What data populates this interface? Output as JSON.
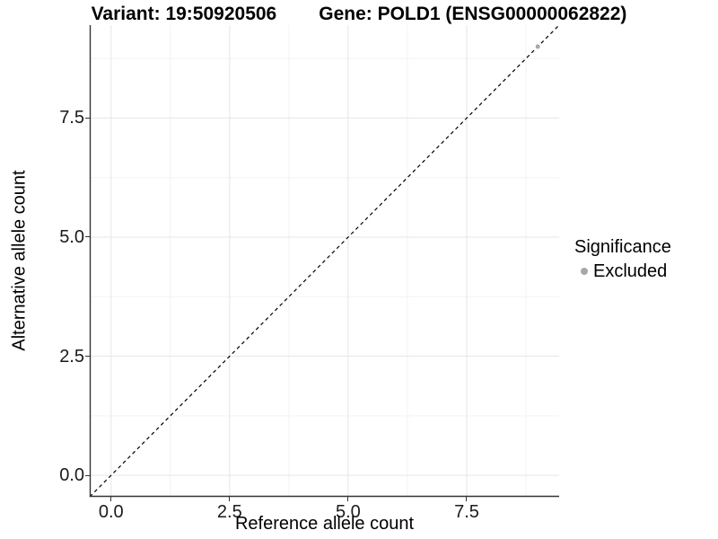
{
  "figure": {
    "title_left": "Variant: 19:50920506",
    "title_right": "Gene: POLD1 (ENSG00000062822)"
  },
  "axes": {
    "x": {
      "label": "Reference allele count"
    },
    "y": {
      "label": "Alternative allele count"
    }
  },
  "legend": {
    "title": "Significance",
    "items": [
      {
        "label": "Excluded",
        "color": "#a8a8a8",
        "shape": "circle"
      }
    ]
  },
  "colors": {
    "background": "#ffffff",
    "grid_major": "#e6e6e6",
    "grid_minor": "#f3f3f3",
    "axis_line": "#333333",
    "reference_line": "#000000",
    "text": "#000000"
  },
  "chart_data": {
    "type": "scatter",
    "title": "Variant: 19:50920506   Gene: POLD1 (ENSG00000062822)",
    "xlabel": "Reference allele count",
    "ylabel": "Alternative allele count",
    "xlim": [
      -0.45,
      9.45
    ],
    "ylim": [
      -0.45,
      9.45
    ],
    "x_ticks": [
      0.0,
      2.5,
      5.0,
      7.5
    ],
    "x_tick_labels": [
      "0.0",
      "2.5",
      "5.0",
      "7.5"
    ],
    "x_minor_ticks": [
      1.25,
      3.75,
      6.25,
      8.75
    ],
    "y_ticks": [
      0.0,
      2.5,
      5.0,
      7.5
    ],
    "y_tick_labels": [
      "0.0",
      "2.5",
      "5.0",
      "7.5"
    ],
    "y_minor_ticks": [
      1.25,
      3.75,
      6.25,
      8.75
    ],
    "grid": true,
    "legend_position": "right",
    "reference_line": {
      "slope": 1,
      "intercept": 0,
      "style": "dashed"
    },
    "series": [
      {
        "name": "Excluded",
        "color": "#a8a8a8",
        "points": [
          [
            9,
            9
          ]
        ]
      }
    ],
    "point_radius": 2.5
  }
}
